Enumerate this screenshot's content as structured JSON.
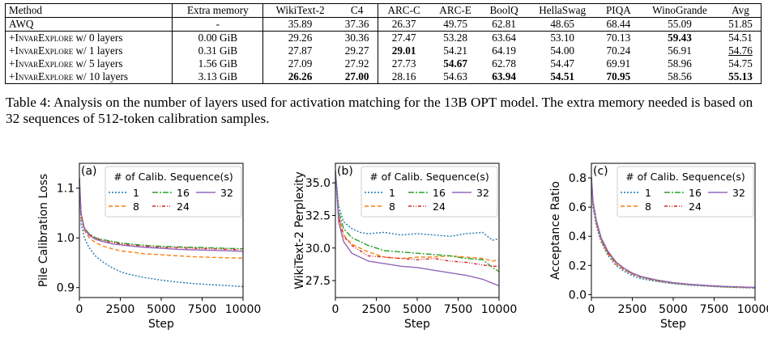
{
  "table": {
    "headers": [
      "Method",
      "Extra memory",
      "WikiText-2",
      "C4",
      "ARC-C",
      "ARC-E",
      "BoolQ",
      "HellaSwag",
      "PIQA",
      "WinoGrande",
      "Avg"
    ],
    "rows": [
      {
        "method_prefix": "AWQ",
        "method_sc": "",
        "method_suffix": "",
        "cells": [
          "-",
          "35.89",
          "37.36",
          "26.37",
          "49.75",
          "62.81",
          "48.65",
          "68.44",
          "55.09",
          "51.85"
        ],
        "bold": [],
        "underline": []
      },
      {
        "method_prefix": "+",
        "method_sc": "InvarExplore",
        "method_suffix": " w/ 0 layers",
        "cells": [
          "0.00 GiB",
          "29.26",
          "30.36",
          "27.47",
          "53.28",
          "63.64",
          "53.10",
          "70.13",
          "59.43",
          "54.51"
        ],
        "bold": [
          8
        ],
        "underline": []
      },
      {
        "method_prefix": "+",
        "method_sc": "InvarExplore",
        "method_suffix": " w/ 1 layers",
        "cells": [
          "0.31 GiB",
          "27.87",
          "29.27",
          "29.01",
          "54.21",
          "64.19",
          "54.00",
          "70.24",
          "56.91",
          "54.76"
        ],
        "bold": [
          3
        ],
        "underline": [
          9
        ]
      },
      {
        "method_prefix": "+",
        "method_sc": "InvarExplore",
        "method_suffix": " w/ 5 layers",
        "cells": [
          "1.56 GiB",
          "27.09",
          "27.92",
          "27.73",
          "54.67",
          "62.78",
          "54.47",
          "69.91",
          "58.96",
          "54.75"
        ],
        "bold": [
          4
        ],
        "underline": []
      },
      {
        "method_prefix": "+",
        "method_sc": "InvarExplore",
        "method_suffix": " w/ 10 layers",
        "cells": [
          "3.13 GiB",
          "26.26",
          "27.00",
          "28.16",
          "54.63",
          "63.94",
          "54.51",
          "70.95",
          "58.56",
          "55.13"
        ],
        "bold": [
          1,
          2,
          5,
          6,
          7,
          9
        ],
        "underline": []
      }
    ]
  },
  "caption": "Table 4: Analysis on the number of layers used for activation matching for the 13B OPT model. The extra memory needed is based on 32 sequences of 512-token calibration samples.",
  "colors": {
    "s1": "#1f77b4",
    "s8": "#ff7f0e",
    "s16": "#2ca02c",
    "s24": "#d62728",
    "s32": "#9467bd"
  },
  "chart_data": [
    {
      "type": "line",
      "panel": "(a)",
      "xlabel": "Step",
      "ylabel": "Pile Calibration Loss",
      "xlim": [
        0,
        10000
      ],
      "ylim": [
        0.88,
        1.15
      ],
      "xticks": [
        0,
        2500,
        5000,
        7500,
        10000
      ],
      "xtick_labels": [
        "0",
        "2500",
        "5000",
        "7500",
        "10000"
      ],
      "yticks": [
        0.9,
        1.0,
        1.1
      ],
      "ytick_labels": [
        "0.9",
        "1.0",
        "1.1"
      ],
      "legend_title": "# of Calib. Sequence(s)",
      "legend_placement": "top-right",
      "series": [
        {
          "name": "1",
          "key": "s1",
          "dash": "2,2",
          "x": [
            0,
            100,
            300,
            600,
            1000,
            1500,
            2000,
            2500,
            3000,
            4000,
            5000,
            6000,
            7000,
            8000,
            9000,
            10000
          ],
          "y": [
            1.12,
            1.03,
            1.0,
            0.98,
            0.963,
            0.95,
            0.94,
            0.932,
            0.927,
            0.92,
            0.915,
            0.911,
            0.908,
            0.906,
            0.904,
            0.902
          ]
        },
        {
          "name": "8",
          "key": "s8",
          "dash": "5,3",
          "x": [
            0,
            100,
            300,
            600,
            1000,
            1500,
            2000,
            2500,
            3000,
            4000,
            5000,
            6000,
            7000,
            8000,
            9000,
            10000
          ],
          "y": [
            1.12,
            1.04,
            1.015,
            1.0,
            0.99,
            0.983,
            0.978,
            0.974,
            0.972,
            0.968,
            0.966,
            0.964,
            0.962,
            0.961,
            0.96,
            0.959
          ]
        },
        {
          "name": "16",
          "key": "s16",
          "dash": "7,2,2,2",
          "x": [
            0,
            100,
            300,
            600,
            1000,
            1500,
            2000,
            2500,
            3000,
            4000,
            5000,
            6000,
            7000,
            8000,
            9000,
            10000
          ],
          "y": [
            1.12,
            1.05,
            1.02,
            1.008,
            1.0,
            0.996,
            0.993,
            0.99,
            0.988,
            0.985,
            0.983,
            0.982,
            0.981,
            0.98,
            0.979,
            0.978
          ]
        },
        {
          "name": "24",
          "key": "s24",
          "dash": "4,2,1,2,1,2",
          "x": [
            0,
            100,
            300,
            600,
            1000,
            1500,
            2000,
            2500,
            3000,
            4000,
            5000,
            6000,
            7000,
            8000,
            9000,
            10000
          ],
          "y": [
            1.12,
            1.05,
            1.02,
            1.007,
            0.999,
            0.994,
            0.991,
            0.988,
            0.986,
            0.983,
            0.981,
            0.98,
            0.979,
            0.978,
            0.977,
            0.976
          ]
        },
        {
          "name": "32",
          "key": "s32",
          "dash": "",
          "x": [
            0,
            100,
            300,
            600,
            1000,
            1500,
            2000,
            2500,
            3000,
            4000,
            5000,
            6000,
            7000,
            8000,
            9000,
            10000
          ],
          "y": [
            1.12,
            1.05,
            1.018,
            1.005,
            0.997,
            0.992,
            0.988,
            0.986,
            0.984,
            0.981,
            0.979,
            0.977,
            0.976,
            0.975,
            0.974,
            0.973
          ]
        }
      ]
    },
    {
      "type": "line",
      "panel": "(b)",
      "xlabel": "Step",
      "ylabel": "WikiText-2 Perplexity",
      "xlim": [
        0,
        10000
      ],
      "ylim": [
        26.2,
        36.5
      ],
      "xticks": [
        0,
        2500,
        5000,
        7500,
        10000
      ],
      "xtick_labels": [
        "0",
        "2500",
        "5000",
        "7500",
        "10000"
      ],
      "yticks": [
        27.5,
        30.0,
        32.5,
        35.0
      ],
      "ytick_labels": [
        "27.5",
        "30.0",
        "32.5",
        "35.0"
      ],
      "legend_title": "# of Calib. Sequence(s)",
      "legend_placement": "top-right",
      "series": [
        {
          "name": "1",
          "key": "s1",
          "dash": "2,2",
          "x": [
            0,
            200,
            500,
            1000,
            1500,
            2000,
            3000,
            4000,
            5000,
            6000,
            7000,
            8000,
            9000,
            9600,
            10000
          ],
          "y": [
            35.9,
            33.2,
            32.0,
            31.5,
            31.2,
            31.1,
            31.2,
            31.0,
            31.1,
            31.0,
            30.9,
            31.1,
            31.2,
            30.6,
            30.7
          ]
        },
        {
          "name": "8",
          "key": "s8",
          "dash": "5,3",
          "x": [
            0,
            200,
            500,
            1000,
            1500,
            2000,
            3000,
            4000,
            5000,
            6000,
            7000,
            8000,
            9000,
            9600,
            10000
          ],
          "y": [
            35.9,
            32.5,
            31.0,
            30.3,
            30.0,
            29.7,
            29.3,
            29.2,
            29.3,
            29.3,
            29.4,
            29.3,
            29.2,
            29.0,
            29.1
          ]
        },
        {
          "name": "16",
          "key": "s16",
          "dash": "7,2,2,2",
          "x": [
            0,
            200,
            500,
            1000,
            1500,
            2000,
            3000,
            4000,
            5000,
            6000,
            7000,
            8000,
            9000,
            9600,
            10000
          ],
          "y": [
            35.9,
            32.8,
            31.5,
            30.8,
            30.5,
            30.2,
            29.8,
            29.7,
            29.6,
            29.5,
            29.4,
            29.2,
            29.1,
            28.5,
            28.2
          ]
        },
        {
          "name": "24",
          "key": "s24",
          "dash": "4,2,1,2,1,2",
          "x": [
            0,
            200,
            500,
            1000,
            1500,
            2000,
            3000,
            4000,
            5000,
            6000,
            7000,
            8000,
            9000,
            9600,
            10000
          ],
          "y": [
            35.9,
            32.4,
            30.9,
            30.2,
            29.8,
            29.4,
            29.3,
            29.2,
            29.1,
            29.2,
            29.0,
            28.9,
            28.7,
            28.6,
            28.6
          ]
        },
        {
          "name": "32",
          "key": "s32",
          "dash": "",
          "x": [
            0,
            200,
            500,
            1000,
            1500,
            2000,
            3000,
            4000,
            5000,
            6000,
            7000,
            8000,
            9000,
            9600,
            10000
          ],
          "y": [
            35.9,
            32.0,
            30.5,
            29.6,
            29.3,
            29.0,
            28.8,
            28.6,
            28.5,
            28.3,
            28.1,
            27.9,
            27.6,
            27.3,
            27.1
          ]
        }
      ]
    },
    {
      "type": "line",
      "panel": "(c)",
      "xlabel": "Step",
      "ylabel": "Acceptance Ratio",
      "xlim": [
        0,
        10000
      ],
      "ylim": [
        -0.02,
        0.9
      ],
      "xticks": [
        0,
        2500,
        5000,
        7500,
        10000
      ],
      "xtick_labels": [
        "0",
        "2500",
        "5000",
        "7500",
        "10000"
      ],
      "yticks": [
        0.0,
        0.2,
        0.4,
        0.6,
        0.8
      ],
      "ytick_labels": [
        "0.0",
        "0.2",
        "0.4",
        "0.6",
        "0.8"
      ],
      "legend_title": "# of Calib. Sequence(s)",
      "legend_placement": "top-right",
      "series": [
        {
          "name": "1",
          "key": "s1",
          "dash": "2,2",
          "x": [
            0,
            100,
            300,
            600,
            1000,
            1500,
            2000,
            2500,
            3000,
            4000,
            5000,
            6000,
            7000,
            8000,
            9000,
            10000
          ],
          "y": [
            0.8,
            0.6,
            0.47,
            0.36,
            0.27,
            0.2,
            0.16,
            0.13,
            0.11,
            0.09,
            0.075,
            0.065,
            0.058,
            0.052,
            0.048,
            0.045
          ]
        },
        {
          "name": "8",
          "key": "s8",
          "dash": "5,3",
          "x": [
            0,
            100,
            300,
            600,
            1000,
            1500,
            2000,
            2500,
            3000,
            4000,
            5000,
            6000,
            7000,
            8000,
            9000,
            10000
          ],
          "y": [
            0.8,
            0.62,
            0.49,
            0.37,
            0.28,
            0.21,
            0.17,
            0.14,
            0.12,
            0.095,
            0.078,
            0.068,
            0.06,
            0.054,
            0.05,
            0.047
          ]
        },
        {
          "name": "16",
          "key": "s16",
          "dash": "7,2,2,2",
          "x": [
            0,
            100,
            300,
            600,
            1000,
            1500,
            2000,
            2500,
            3000,
            4000,
            5000,
            6000,
            7000,
            8000,
            9000,
            10000
          ],
          "y": [
            0.8,
            0.63,
            0.5,
            0.38,
            0.29,
            0.22,
            0.175,
            0.145,
            0.122,
            0.097,
            0.08,
            0.069,
            0.061,
            0.055,
            0.051,
            0.048
          ]
        },
        {
          "name": "24",
          "key": "s24",
          "dash": "4,2,1,2,1,2",
          "x": [
            0,
            100,
            300,
            600,
            1000,
            1500,
            2000,
            2500,
            3000,
            4000,
            5000,
            6000,
            7000,
            8000,
            9000,
            10000
          ],
          "y": [
            0.8,
            0.63,
            0.5,
            0.38,
            0.29,
            0.22,
            0.175,
            0.145,
            0.123,
            0.098,
            0.081,
            0.07,
            0.062,
            0.056,
            0.052,
            0.049
          ]
        },
        {
          "name": "32",
          "key": "s32",
          "dash": "",
          "x": [
            0,
            100,
            300,
            600,
            1000,
            1500,
            2000,
            2500,
            3000,
            4000,
            5000,
            6000,
            7000,
            8000,
            9000,
            10000
          ],
          "y": [
            0.8,
            0.64,
            0.51,
            0.39,
            0.3,
            0.225,
            0.18,
            0.148,
            0.125,
            0.1,
            0.082,
            0.071,
            0.063,
            0.057,
            0.053,
            0.05
          ]
        }
      ]
    }
  ]
}
